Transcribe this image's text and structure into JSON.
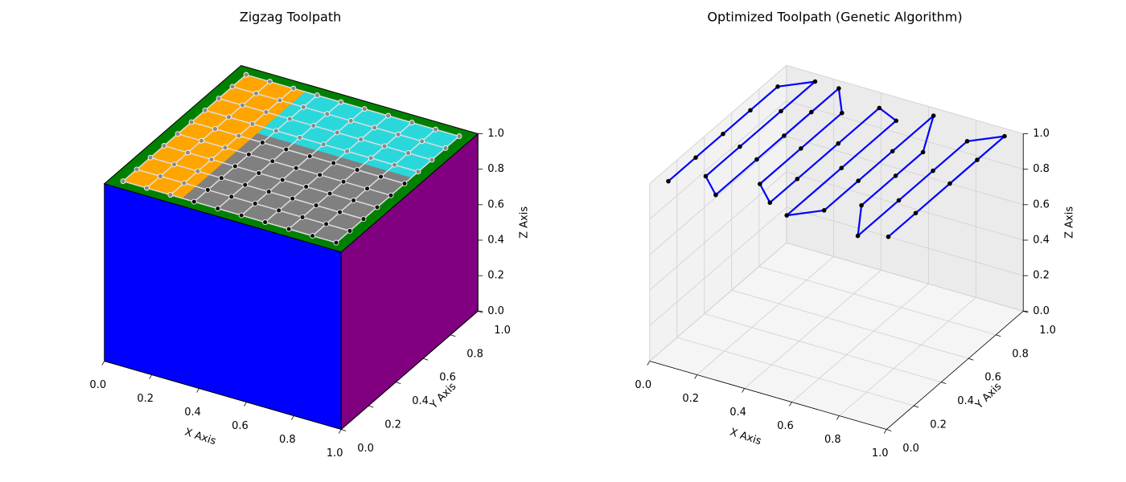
{
  "chart_data": [
    {
      "type": "box-surface",
      "title": "Zigzag Toolpath",
      "xlabel": "X Axis",
      "ylabel": "Y Axis",
      "zlabel": "Z Axis",
      "xlim": [
        0,
        1
      ],
      "ylim": [
        0,
        1
      ],
      "zlim": [
        0,
        1
      ],
      "xticks": [
        {
          "value": 0,
          "label": "0.0"
        },
        0.2,
        0.4,
        0.6,
        0.8,
        {
          "value": 1,
          "label": "1.0"
        }
      ],
      "yticks": [
        {
          "value": 0,
          "label": "0.0"
        },
        0.2,
        0.4,
        0.6,
        0.8,
        {
          "value": 1,
          "label": "1.0"
        }
      ],
      "zticks": [
        {
          "value": 0,
          "label": "0.0"
        },
        0.2,
        0.4,
        0.6,
        0.8,
        {
          "value": 1,
          "label": "1.0"
        }
      ],
      "face_colors": {
        "top": "green",
        "front": "blue",
        "right": "purple"
      },
      "regions": [
        {
          "color": "#808080",
          "point_color": "#111111",
          "x": [
            0.05,
            0.95
          ],
          "y": [
            0.05,
            0.95
          ]
        },
        {
          "color": "orange",
          "point_color": "#8a8a8a",
          "x": [
            0.05,
            0.3
          ],
          "y": [
            0.05,
            0.95
          ]
        },
        {
          "color": "#2ad8dc",
          "point_color": "#8a8a8a",
          "x": [
            0.3,
            0.95
          ],
          "y": [
            0.6,
            0.95
          ]
        }
      ],
      "grid_x": [
        0.05,
        0.15,
        0.25,
        0.35,
        0.45,
        0.55,
        0.65,
        0.75,
        0.85,
        0.95
      ],
      "grid_y": [
        0.05,
        0.15,
        0.25,
        0.35,
        0.45,
        0.55,
        0.65,
        0.75,
        0.85,
        0.95
      ],
      "z": 1
    },
    {
      "type": "line3d",
      "title": "Optimized Toolpath (Genetic Algorithm)",
      "xlabel": "X Axis",
      "ylabel": "Y Axis",
      "zlabel": "Z Axis",
      "xlim": [
        0,
        1
      ],
      "ylim": [
        0,
        1
      ],
      "zlim": [
        0,
        1
      ],
      "xticks": [
        {
          "value": 0,
          "label": "0.0"
        },
        0.2,
        0.4,
        0.6,
        0.8,
        {
          "value": 1,
          "label": "1.0"
        }
      ],
      "yticks": [
        {
          "value": 0,
          "label": "0.0"
        },
        0.2,
        0.4,
        0.6,
        0.8,
        {
          "value": 1,
          "label": "1.0"
        }
      ],
      "zticks": [
        {
          "value": 0,
          "label": "0.0"
        },
        0.2,
        0.4,
        0.6,
        0.8,
        {
          "value": 1,
          "label": "1.0"
        }
      ],
      "series": [
        {
          "color": "blue",
          "marker_color": "black",
          "x": [
            0.05,
            0.05,
            0.05,
            0.05,
            0.05,
            0.15,
            0.15,
            0.15,
            0.15,
            0.25,
            0.25,
            0.25,
            0.25,
            0.25,
            0.35,
            0.35,
            0.35,
            0.45,
            0.45,
            0.45,
            0.45,
            0.55,
            0.55,
            0.55,
            0.65,
            0.65,
            0.65,
            0.65,
            0.75,
            0.75,
            0.75,
            0.85,
            0.85,
            0.85,
            0.85,
            0.95,
            0.95,
            0.95,
            0.95,
            0.95
          ],
          "y": [
            0.05,
            0.25,
            0.45,
            0.65,
            0.85,
            0.95,
            0.7,
            0.4,
            0.15,
            0.05,
            0.35,
            0.55,
            0.75,
            0.95,
            0.8,
            0.5,
            0.2,
            0.1,
            0.3,
            0.6,
            0.9,
            0.85,
            0.45,
            0.05,
            0.15,
            0.4,
            0.65,
            0.95,
            0.7,
            0.5,
            0.25,
            0.05,
            0.35,
            0.6,
            0.85,
            0.95,
            0.75,
            0.55,
            0.3,
            0.1
          ],
          "z": [
            1,
            1,
            1,
            1,
            1,
            1,
            1,
            1,
            1,
            1,
            1,
            1,
            1,
            1,
            1,
            1,
            1,
            1,
            1,
            1,
            1,
            1,
            1,
            1,
            1,
            1,
            1,
            1,
            1,
            1,
            1,
            1,
            1,
            1,
            1,
            1,
            1,
            1,
            1,
            1
          ]
        }
      ]
    }
  ]
}
